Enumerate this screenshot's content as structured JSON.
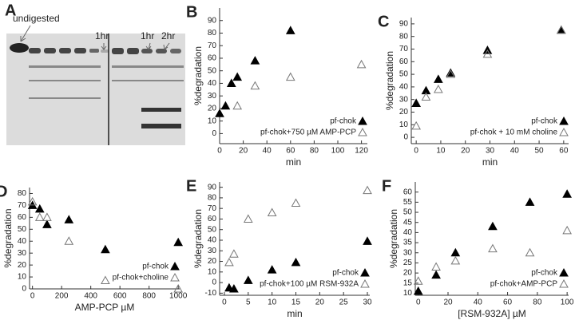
{
  "gel": {
    "panel": "A",
    "labels": [
      "undigested",
      "1hr",
      "1hr",
      "2hr"
    ]
  },
  "chart_data": [
    {
      "type": "scatter",
      "panel": "B",
      "xlabel": "min",
      "ylabel": "%degradation",
      "xlim": [
        0,
        125
      ],
      "xticks": [
        0,
        20,
        40,
        60,
        80,
        100,
        120
      ],
      "ylim": [
        -8,
        100
      ],
      "yticks": [
        0,
        10,
        20,
        30,
        40,
        50,
        60,
        70,
        80,
        90
      ],
      "series": [
        {
          "name": "pf-chok",
          "color": "#000000",
          "filled": true,
          "x": [
            0,
            5,
            10,
            15,
            30,
            60
          ],
          "values": [
            16,
            22,
            40,
            45,
            58,
            82
          ]
        },
        {
          "name": "pf-chok+750 µM AMP-PCP",
          "color": "#777777",
          "filled": false,
          "x": [
            15,
            30,
            60,
            120
          ],
          "values": [
            22,
            38,
            45,
            55
          ]
        }
      ]
    },
    {
      "type": "scatter",
      "panel": "C",
      "xlabel": "min",
      "ylabel": "%degradation",
      "xlim": [
        -2,
        62
      ],
      "xticks": [
        0,
        10,
        20,
        30,
        40,
        50,
        60
      ],
      "ylim": [
        -5,
        95
      ],
      "yticks": [
        0,
        10,
        20,
        30,
        40,
        50,
        60,
        70,
        80,
        90
      ],
      "series": [
        {
          "name": "pf-chok",
          "color": "#000000",
          "filled": true,
          "x": [
            0,
            4,
            9,
            14,
            29,
            59
          ],
          "values": [
            27,
            37,
            46,
            51,
            69,
            85
          ]
        },
        {
          "name": "pf-chok + 10 mM choline",
          "color": "#777777",
          "filled": false,
          "x": [
            0,
            4,
            9,
            14,
            29,
            59
          ],
          "values": [
            9,
            32,
            38,
            50,
            66,
            85
          ]
        }
      ]
    },
    {
      "type": "scatter",
      "panel": "D",
      "xlabel": "AMP-PCP µM",
      "ylabel": "%degradation",
      "xlim": [
        -20,
        1010
      ],
      "xticks": [
        0,
        200,
        400,
        600,
        800,
        1000
      ],
      "ylim": [
        0,
        85
      ],
      "yticks": [
        0,
        10,
        20,
        30,
        40,
        50,
        60,
        70,
        80
      ],
      "series": [
        {
          "name": "pf-chok",
          "color": "#000000",
          "filled": true,
          "x": [
            0,
            50,
            100,
            250,
            500,
            1000
          ],
          "values": [
            70,
            67,
            54,
            58,
            33,
            39
          ]
        },
        {
          "name": "pf-chok+choline",
          "color": "#777777",
          "filled": false,
          "x": [
            0,
            50,
            100,
            250,
            500,
            1000
          ],
          "values": [
            73,
            60,
            60,
            40,
            7,
            0
          ]
        }
      ]
    },
    {
      "type": "scatter",
      "panel": "E",
      "xlabel": "min",
      "ylabel": "%degradation",
      "xlim": [
        -1,
        30.5
      ],
      "xticks": [
        0,
        5,
        10,
        15,
        20,
        25,
        30
      ],
      "ylim": [
        -12,
        95
      ],
      "yticks": [
        -10,
        0,
        10,
        20,
        30,
        40,
        50,
        60,
        70,
        80,
        90
      ],
      "series": [
        {
          "name": "pf-chok",
          "color": "#000000",
          "filled": true,
          "x": [
            1,
            2,
            5,
            10,
            15,
            30
          ],
          "values": [
            -5,
            -6,
            2,
            12,
            19,
            39
          ]
        },
        {
          "name": "pf-chok+100 µM RSM-932A",
          "color": "#777777",
          "filled": false,
          "x": [
            1,
            2,
            5,
            10,
            15,
            30
          ],
          "values": [
            19,
            27,
            60,
            66,
            75,
            87
          ]
        }
      ]
    },
    {
      "type": "scatter",
      "panel": "F",
      "xlabel": "[RSM-932A] µM",
      "ylabel": "%degradation",
      "xlim": [
        -2,
        101
      ],
      "xticks": [
        0,
        20,
        40,
        60,
        80,
        100
      ],
      "ylim": [
        9,
        65
      ],
      "yticks": [
        10,
        15,
        20,
        25,
        30,
        35,
        40,
        45,
        50,
        55,
        60
      ],
      "series": [
        {
          "name": "pf-chok",
          "color": "#000000",
          "filled": true,
          "x": [
            0,
            12,
            25,
            50,
            75,
            100
          ],
          "values": [
            11,
            19,
            30,
            43,
            55,
            59
          ]
        },
        {
          "name": "pf-chok+AMP-PCP",
          "color": "#777777",
          "filled": false,
          "x": [
            0,
            12,
            25,
            50,
            75,
            100
          ],
          "values": [
            16,
            23,
            26,
            32,
            30,
            41
          ]
        }
      ]
    }
  ]
}
